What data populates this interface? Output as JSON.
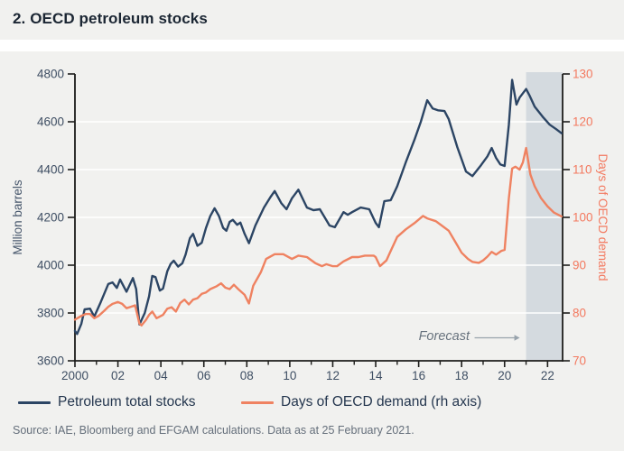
{
  "page": {
    "title": "2. OECD petroleum stocks",
    "source": "Source: IAE, Bloomberg and EFGAM calculations. Data as at 25 February 2021."
  },
  "legend": [
    {
      "label": "Petroleum total stocks",
      "color": "#2C4564"
    },
    {
      "label": "Days of OECD demand (rh axis)",
      "color": "#EF8261"
    }
  ],
  "chart_data": {
    "type": "line",
    "title": "2. OECD petroleum stocks",
    "grid": {
      "color": "#FFFFFF",
      "left_values": [
        3800,
        4000,
        4200,
        4400,
        4600
      ]
    },
    "axis_color": "#1D1D1B",
    "x_axis": {
      "range": [
        2000,
        2022.7
      ],
      "label_color": "#3E4E63",
      "major_ticks": [
        [
          2000,
          "2000"
        ],
        [
          2002,
          "02"
        ],
        [
          2004,
          "04"
        ],
        [
          2006,
          "06"
        ],
        [
          2008,
          "08"
        ],
        [
          2010,
          "10"
        ],
        [
          2012,
          "12"
        ],
        [
          2014,
          "14"
        ],
        [
          2016,
          "16"
        ],
        [
          2018,
          "18"
        ],
        [
          2020,
          "20"
        ],
        [
          2022,
          "22"
        ]
      ],
      "minor_tick_years": [
        2001,
        2003,
        2005,
        2007,
        2009,
        2011,
        2013,
        2015,
        2017,
        2019,
        2021
      ]
    },
    "left_axis": {
      "label": "Million barrels",
      "range": [
        3600,
        4800
      ],
      "ticks": [
        3600,
        3800,
        4000,
        4200,
        4400,
        4600,
        4800
      ],
      "color": "#3E4E63"
    },
    "right_axis": {
      "label": "Days of OECD demand",
      "range": [
        70,
        130
      ],
      "ticks": [
        70,
        80,
        90,
        100,
        110,
        120,
        130
      ],
      "color": "#F3795F"
    },
    "forecast_band": {
      "start": 2021,
      "end": 2022.7,
      "color": "#D4DADF",
      "label": "Forecast",
      "arrow_color": "#98A3AC"
    },
    "series": [
      {
        "name": "Petroleum total stocks",
        "axis": "left",
        "color": "#2C4564",
        "points": [
          [
            2000.0,
            3725
          ],
          [
            2000.1,
            3712
          ],
          [
            2000.3,
            3755
          ],
          [
            2000.45,
            3815
          ],
          [
            2000.7,
            3818
          ],
          [
            2000.9,
            3785
          ],
          [
            2001.2,
            3845
          ],
          [
            2001.55,
            3921
          ],
          [
            2001.75,
            3928
          ],
          [
            2001.95,
            3905
          ],
          [
            2002.1,
            3940
          ],
          [
            2002.4,
            3889
          ],
          [
            2002.7,
            3946
          ],
          [
            2002.85,
            3900
          ],
          [
            2003.0,
            3752
          ],
          [
            2003.25,
            3800
          ],
          [
            2003.45,
            3870
          ],
          [
            2003.6,
            3955
          ],
          [
            2003.75,
            3950
          ],
          [
            2003.95,
            3894
          ],
          [
            2004.1,
            3902
          ],
          [
            2004.3,
            3975
          ],
          [
            2004.45,
            4005
          ],
          [
            2004.6,
            4019
          ],
          [
            2004.8,
            3994
          ],
          [
            2005.0,
            4008
          ],
          [
            2005.15,
            4044
          ],
          [
            2005.35,
            4113
          ],
          [
            2005.5,
            4131
          ],
          [
            2005.7,
            4081
          ],
          [
            2005.9,
            4094
          ],
          [
            2006.1,
            4156
          ],
          [
            2006.3,
            4206
          ],
          [
            2006.5,
            4238
          ],
          [
            2006.7,
            4206
          ],
          [
            2006.9,
            4156
          ],
          [
            2007.05,
            4144
          ],
          [
            2007.2,
            4181
          ],
          [
            2007.35,
            4190
          ],
          [
            2007.55,
            4169
          ],
          [
            2007.7,
            4178
          ],
          [
            2007.9,
            4131
          ],
          [
            2008.1,
            4092
          ],
          [
            2008.4,
            4166
          ],
          [
            2008.8,
            4241
          ],
          [
            2009.1,
            4285
          ],
          [
            2009.3,
            4310
          ],
          [
            2009.6,
            4260
          ],
          [
            2009.85,
            4234
          ],
          [
            2010.1,
            4280
          ],
          [
            2010.4,
            4316
          ],
          [
            2010.8,
            4241
          ],
          [
            2011.1,
            4230
          ],
          [
            2011.4,
            4234
          ],
          [
            2011.6,
            4204
          ],
          [
            2011.85,
            4166
          ],
          [
            2012.1,
            4159
          ],
          [
            2012.5,
            4222
          ],
          [
            2012.7,
            4211
          ],
          [
            2012.9,
            4222
          ],
          [
            2013.3,
            4241
          ],
          [
            2013.7,
            4234
          ],
          [
            2014.0,
            4177
          ],
          [
            2014.15,
            4159
          ],
          [
            2014.4,
            4268
          ],
          [
            2014.7,
            4272
          ],
          [
            2015.0,
            4330
          ],
          [
            2015.4,
            4430
          ],
          [
            2015.8,
            4524
          ],
          [
            2016.1,
            4600
          ],
          [
            2016.4,
            4690
          ],
          [
            2016.65,
            4656
          ],
          [
            2016.9,
            4648
          ],
          [
            2017.2,
            4645
          ],
          [
            2017.4,
            4611
          ],
          [
            2017.8,
            4494
          ],
          [
            2018.2,
            4392
          ],
          [
            2018.5,
            4373
          ],
          [
            2018.9,
            4418
          ],
          [
            2019.2,
            4455
          ],
          [
            2019.4,
            4490
          ],
          [
            2019.6,
            4449
          ],
          [
            2019.8,
            4422
          ],
          [
            2020.0,
            4415
          ],
          [
            2020.2,
            4588
          ],
          [
            2020.35,
            4775
          ],
          [
            2020.55,
            4672
          ],
          [
            2020.7,
            4701
          ],
          [
            2021.0,
            4737
          ],
          [
            2021.15,
            4712
          ],
          [
            2021.4,
            4663
          ],
          [
            2021.8,
            4618
          ],
          [
            2022.1,
            4588
          ],
          [
            2022.4,
            4569
          ],
          [
            2022.65,
            4552
          ]
        ]
      },
      {
        "name": "Days of OECD demand (rh axis)",
        "axis": "right",
        "color": "#EF8261",
        "points": [
          [
            2000.0,
            78.6
          ],
          [
            2000.3,
            79.4
          ],
          [
            2000.5,
            79.8
          ],
          [
            2000.7,
            79.8
          ],
          [
            2000.9,
            78.9
          ],
          [
            2001.1,
            79.4
          ],
          [
            2001.35,
            80.4
          ],
          [
            2001.55,
            81.3
          ],
          [
            2001.75,
            81.9
          ],
          [
            2002.0,
            82.3
          ],
          [
            2002.2,
            81.9
          ],
          [
            2002.4,
            81.0
          ],
          [
            2002.6,
            81.3
          ],
          [
            2002.8,
            81.6
          ],
          [
            2003.0,
            77.8
          ],
          [
            2003.1,
            77.4
          ],
          [
            2003.3,
            78.5
          ],
          [
            2003.45,
            79.6
          ],
          [
            2003.6,
            80.3
          ],
          [
            2003.8,
            78.9
          ],
          [
            2004.1,
            79.6
          ],
          [
            2004.3,
            80.9
          ],
          [
            2004.5,
            81.2
          ],
          [
            2004.7,
            80.3
          ],
          [
            2004.9,
            82.1
          ],
          [
            2005.1,
            82.8
          ],
          [
            2005.3,
            81.8
          ],
          [
            2005.5,
            82.8
          ],
          [
            2005.7,
            83.1
          ],
          [
            2005.9,
            84.0
          ],
          [
            2006.1,
            84.3
          ],
          [
            2006.3,
            85.0
          ],
          [
            2006.6,
            85.6
          ],
          [
            2006.8,
            86.2
          ],
          [
            2007.0,
            85.3
          ],
          [
            2007.2,
            85.0
          ],
          [
            2007.4,
            85.9
          ],
          [
            2007.6,
            85.0
          ],
          [
            2007.9,
            83.8
          ],
          [
            2008.1,
            82.0
          ],
          [
            2008.3,
            85.7
          ],
          [
            2008.65,
            88.5
          ],
          [
            2008.9,
            91.3
          ],
          [
            2009.3,
            92.3
          ],
          [
            2009.7,
            92.3
          ],
          [
            2010.1,
            91.3
          ],
          [
            2010.4,
            92.0
          ],
          [
            2010.8,
            91.7
          ],
          [
            2011.2,
            90.4
          ],
          [
            2011.5,
            89.8
          ],
          [
            2011.7,
            90.2
          ],
          [
            2012.0,
            89.8
          ],
          [
            2012.2,
            89.8
          ],
          [
            2012.5,
            90.8
          ],
          [
            2012.9,
            91.7
          ],
          [
            2013.2,
            91.7
          ],
          [
            2013.5,
            92.0
          ],
          [
            2013.9,
            92.0
          ],
          [
            2014.0,
            91.7
          ],
          [
            2014.2,
            89.8
          ],
          [
            2014.5,
            91.0
          ],
          [
            2014.7,
            93.0
          ],
          [
            2015.0,
            95.9
          ],
          [
            2015.4,
            97.5
          ],
          [
            2015.8,
            98.8
          ],
          [
            2016.2,
            100.3
          ],
          [
            2016.4,
            99.8
          ],
          [
            2016.8,
            99.2
          ],
          [
            2017.1,
            98.2
          ],
          [
            2017.4,
            97.2
          ],
          [
            2017.7,
            94.9
          ],
          [
            2018.0,
            92.6
          ],
          [
            2018.3,
            91.3
          ],
          [
            2018.5,
            90.7
          ],
          [
            2018.8,
            90.5
          ],
          [
            2019.0,
            91.0
          ],
          [
            2019.2,
            91.8
          ],
          [
            2019.4,
            92.8
          ],
          [
            2019.6,
            92.2
          ],
          [
            2019.85,
            93.0
          ],
          [
            2020.0,
            93.2
          ],
          [
            2020.2,
            104.0
          ],
          [
            2020.35,
            110.2
          ],
          [
            2020.5,
            110.6
          ],
          [
            2020.7,
            110.0
          ],
          [
            2020.85,
            111.5
          ],
          [
            2021.0,
            114.5
          ],
          [
            2021.2,
            109.0
          ],
          [
            2021.4,
            106.5
          ],
          [
            2021.7,
            104.0
          ],
          [
            2022.0,
            102.3
          ],
          [
            2022.3,
            101.0
          ],
          [
            2022.65,
            100.2
          ]
        ]
      }
    ]
  }
}
